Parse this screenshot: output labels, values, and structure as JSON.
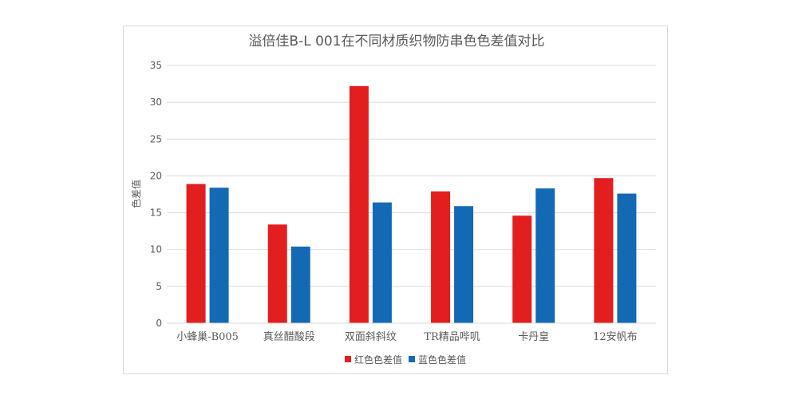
{
  "chart_data": {
    "type": "bar",
    "title": "溢倍佳B-L 001在不同材质织物防串色色差值对比",
    "xlabel": "",
    "ylabel": "色差值",
    "ylim": [
      0,
      35
    ],
    "yticks": [
      0,
      5,
      10,
      15,
      20,
      25,
      30,
      35
    ],
    "grid": true,
    "legend_position": "bottom",
    "categories": [
      "小蜂巢-B005",
      "真丝醋酸段",
      "双面斜斜纹",
      "TR精品哔叽",
      "卡丹皇",
      "12安帆布"
    ],
    "series": [
      {
        "name": "红色色差值",
        "color": "#e31e1e",
        "values": [
          18.9,
          13.4,
          32.2,
          17.9,
          14.6,
          19.7
        ]
      },
      {
        "name": "蓝色色差值",
        "color": "#1469b4",
        "values": [
          18.4,
          10.4,
          16.4,
          15.9,
          18.3,
          17.6
        ]
      }
    ]
  }
}
